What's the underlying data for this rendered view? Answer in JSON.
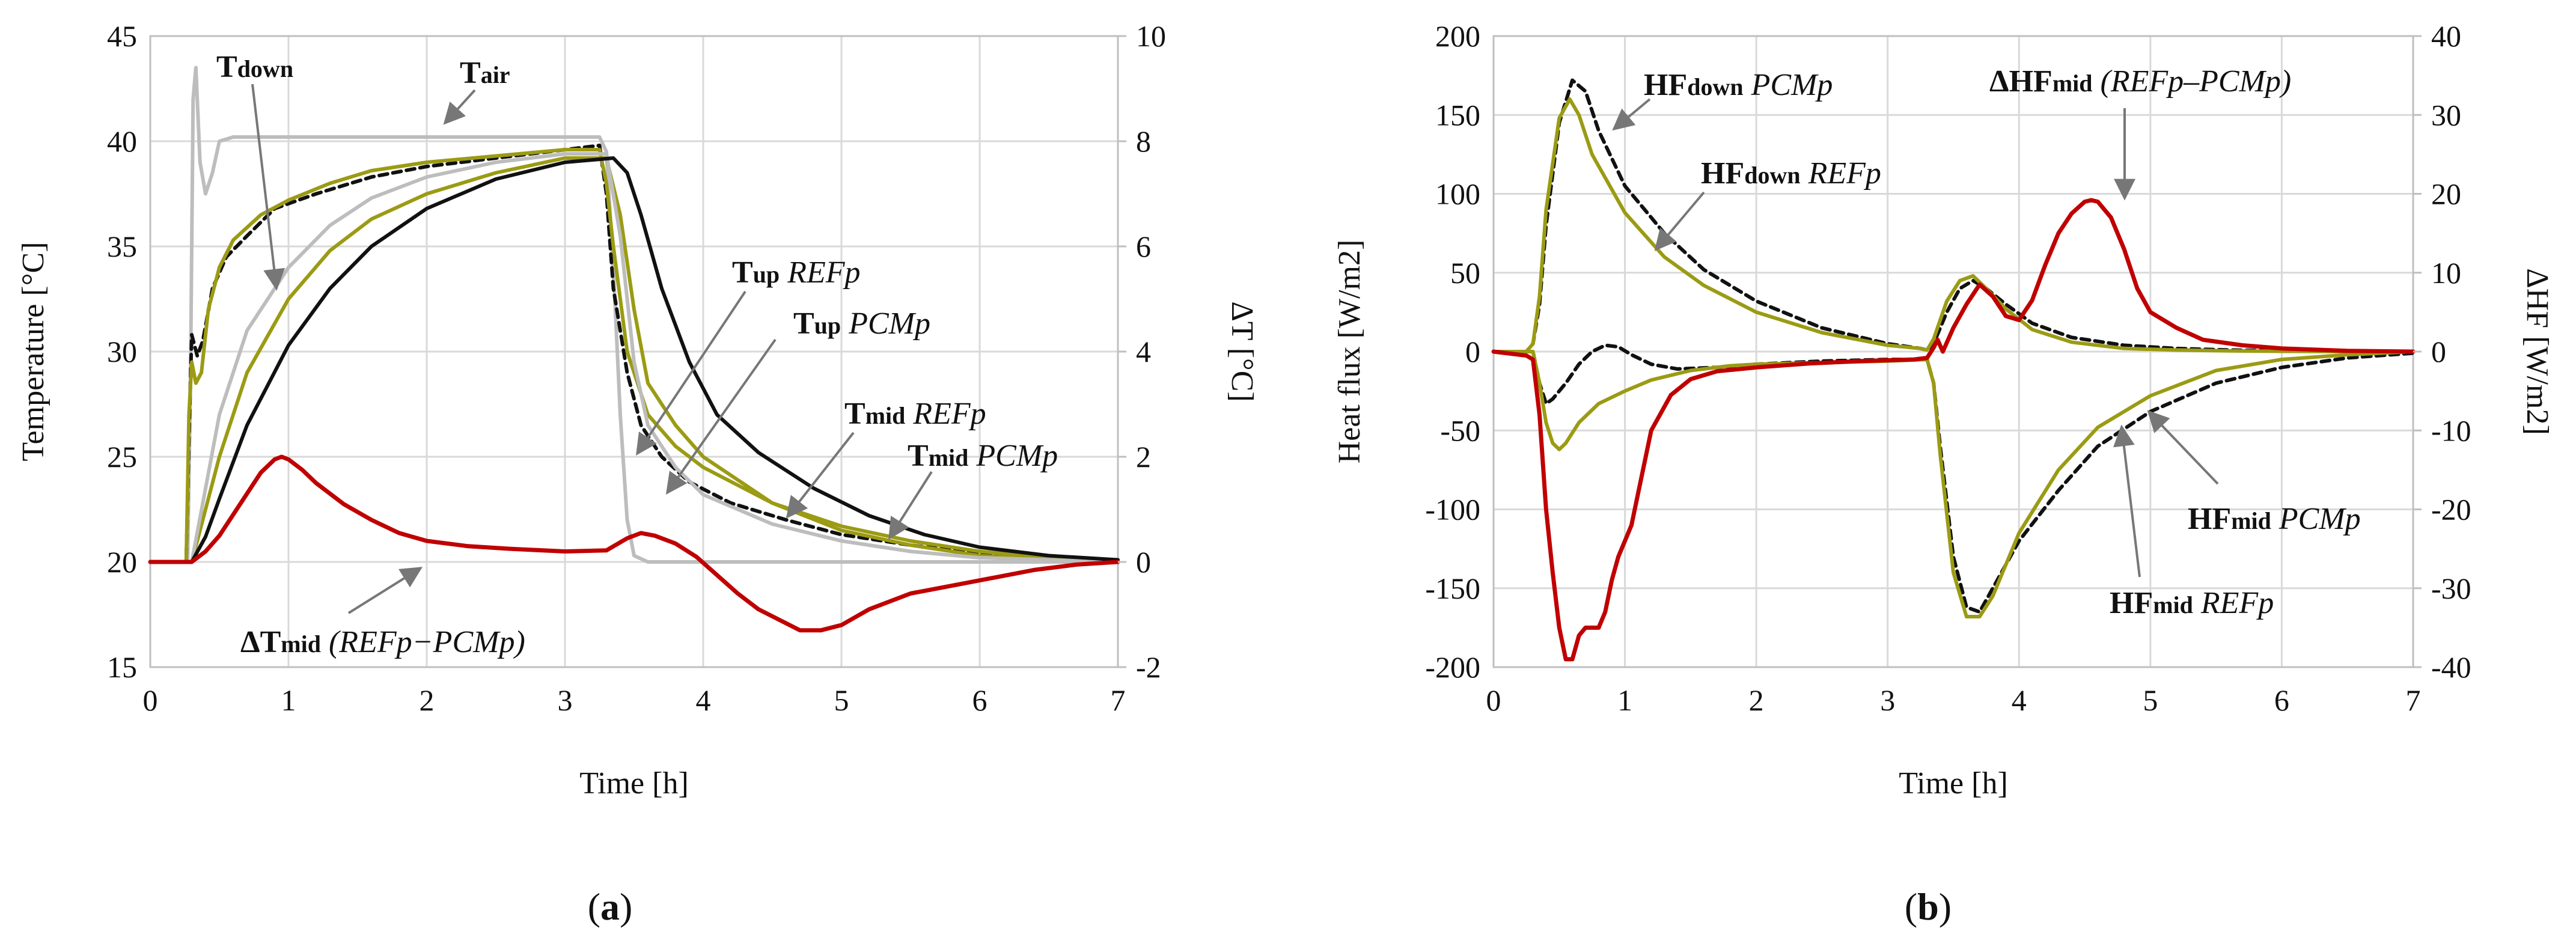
{
  "chart_data": [
    {
      "type": "line",
      "panel_label": "(a)",
      "panel_letter": "a",
      "xlabel": "Time [h]",
      "ylabel": "Temperature [°C]",
      "y2label": "ΔT [°C]",
      "xlim": [
        0,
        7
      ],
      "ylim": [
        15,
        45
      ],
      "y2lim": [
        -2,
        10
      ],
      "xticks": [
        "0",
        "1",
        "2",
        "3",
        "4",
        "5",
        "6",
        "7"
      ],
      "yticks": [
        "15",
        "20",
        "25",
        "30",
        "35",
        "40",
        "45"
      ],
      "y2ticks": [
        "-2",
        "0",
        "2",
        "4",
        "6",
        "8",
        "10"
      ],
      "grid": true,
      "series": [
        {
          "name": "Tair",
          "axis": "left",
          "color": "#bdbdbd",
          "dash": "",
          "x": [
            0,
            0.27,
            0.29,
            0.3,
            0.31,
            0.33,
            0.36,
            0.4,
            0.45,
            0.5,
            0.6,
            0.7,
            1,
            2,
            3,
            3.25,
            3.3,
            3.35,
            3.4,
            3.45,
            3.5,
            3.6,
            4,
            5,
            6,
            7
          ],
          "y": [
            20,
            20,
            28,
            35,
            42,
            43.5,
            39,
            37.5,
            38.5,
            40,
            40.2,
            40.2,
            40.2,
            40.2,
            40.2,
            40.2,
            39.5,
            34,
            27,
            22,
            20.3,
            20,
            20,
            20,
            20,
            20
          ]
        },
        {
          "name": "Tdown PCMp",
          "axis": "left",
          "color": "#111111",
          "dash": "14,9",
          "x": [
            0,
            0.26,
            0.28,
            0.3,
            0.34,
            0.38,
            0.45,
            0.55,
            0.7,
            0.9,
            1.2,
            1.6,
            2.0,
            2.5,
            3.0,
            3.25,
            3.3,
            3.35,
            3.45,
            3.55,
            3.7,
            3.9,
            4.2,
            4.6,
            5.0,
            5.5,
            6.0,
            6.5,
            7
          ],
          "y": [
            20,
            20,
            26,
            30.8,
            29.8,
            30.5,
            33,
            34.5,
            35.5,
            36.8,
            37.5,
            38.3,
            38.8,
            39.2,
            39.6,
            39.8,
            37.5,
            33,
            29,
            26.5,
            25,
            23.8,
            22.8,
            22,
            21.3,
            20.8,
            20.4,
            20.2,
            20.1
          ]
        },
        {
          "name": "Tdown REFp",
          "axis": "left",
          "color": "#9b9b14",
          "dash": "",
          "x": [
            0,
            0.26,
            0.28,
            0.3,
            0.33,
            0.37,
            0.42,
            0.5,
            0.6,
            0.8,
            1.0,
            1.3,
            1.6,
            2.0,
            2.5,
            3.0,
            3.25,
            3.3,
            3.35,
            3.45,
            3.6,
            3.8,
            4.0,
            4.5,
            5.0,
            5.5,
            6.0,
            6.5,
            7
          ],
          "y": [
            20,
            20,
            27,
            29.5,
            28.5,
            29,
            32,
            34,
            35.3,
            36.5,
            37.2,
            38,
            38.6,
            39,
            39.3,
            39.6,
            39.6,
            38,
            35,
            30,
            27,
            25.5,
            24.5,
            22.8,
            21.7,
            21,
            20.5,
            20.2,
            20.1
          ]
        },
        {
          "name": "Tup PCMp",
          "axis": "left",
          "color": "#9b9b14",
          "dash": "",
          "x": [
            0,
            0.3,
            0.4,
            0.5,
            0.7,
            1.0,
            1.3,
            1.6,
            2.0,
            2.5,
            3.0,
            3.3,
            3.4,
            3.5,
            3.6,
            3.8,
            4.0,
            4.5,
            5.0,
            5.5,
            6.0,
            6.5,
            7
          ],
          "y": [
            20,
            20,
            22.5,
            25,
            29,
            32.5,
            34.8,
            36.3,
            37.5,
            38.5,
            39.2,
            39.2,
            36.5,
            32,
            28.5,
            26.5,
            25,
            22.8,
            21.5,
            20.8,
            20.3,
            20.1,
            20
          ]
        },
        {
          "name": "Tup REFp",
          "axis": "left",
          "color": "#bdbdbd",
          "dash": "",
          "x": [
            0,
            0.3,
            0.4,
            0.5,
            0.7,
            1.0,
            1.3,
            1.6,
            2.0,
            2.5,
            3.0,
            3.3,
            3.4,
            3.5,
            3.6,
            3.8,
            4.0,
            4.5,
            5.0,
            5.5,
            6.0,
            6.5,
            7
          ],
          "y": [
            20,
            20,
            23.5,
            27,
            31,
            34,
            36,
            37.3,
            38.3,
            39,
            39.4,
            39.4,
            35.5,
            29.5,
            26.5,
            24.5,
            23.2,
            21.8,
            21,
            20.5,
            20.2,
            20.1,
            20
          ]
        },
        {
          "name": "Tmid REFp",
          "axis": "left",
          "color": "#111111",
          "dash": "",
          "x": [
            0,
            0.3,
            0.4,
            0.5,
            0.7,
            1.0,
            1.3,
            1.6,
            2.0,
            2.5,
            3.0,
            3.35,
            3.45,
            3.55,
            3.7,
            3.9,
            4.1,
            4.4,
            4.8,
            5.2,
            5.6,
            6.0,
            6.5,
            7
          ],
          "y": [
            20,
            20,
            21.2,
            23,
            26.5,
            30.3,
            33,
            35,
            36.8,
            38.2,
            39,
            39.2,
            38.5,
            36.5,
            33,
            29.5,
            27,
            25.2,
            23.5,
            22.2,
            21.3,
            20.7,
            20.3,
            20.1
          ]
        },
        {
          "name": "ΔTmid (REFp−PCMp)",
          "axis": "right",
          "color": "#c00000",
          "dash": "",
          "x": [
            0,
            0.3,
            0.4,
            0.5,
            0.6,
            0.7,
            0.8,
            0.9,
            0.95,
            1.0,
            1.1,
            1.2,
            1.4,
            1.6,
            1.8,
            2.0,
            2.3,
            2.6,
            3.0,
            3.3,
            3.45,
            3.55,
            3.65,
            3.8,
            3.95,
            4.1,
            4.25,
            4.4,
            4.55,
            4.7,
            4.85,
            5.0,
            5.2,
            5.5,
            5.8,
            6.1,
            6.4,
            6.7,
            7
          ],
          "y": [
            0,
            0,
            0.2,
            0.5,
            0.9,
            1.3,
            1.7,
            1.95,
            2.0,
            1.95,
            1.75,
            1.5,
            1.1,
            0.8,
            0.55,
            0.4,
            0.3,
            0.25,
            0.2,
            0.22,
            0.45,
            0.55,
            0.5,
            0.35,
            0.1,
            -0.25,
            -0.6,
            -0.9,
            -1.1,
            -1.3,
            -1.3,
            -1.2,
            -0.9,
            -0.6,
            -0.45,
            -0.3,
            -0.15,
            -0.05,
            0
          ]
        }
      ],
      "annotations": [
        {
          "main": "T",
          "sub": "down",
          "rest": ""
        },
        {
          "main": "T",
          "sub": "air",
          "rest": ""
        },
        {
          "main": "T",
          "sub": "up",
          "rest": " REFp"
        },
        {
          "main": "T",
          "sub": "up",
          "rest": " PCMp"
        },
        {
          "main": "T",
          "sub": "mid",
          "rest": " REFp"
        },
        {
          "main": "T",
          "sub": "mid",
          "rest": " PCMp"
        },
        {
          "main": "ΔT",
          "sub": "mid",
          "rest": " (REFp−PCMp)"
        }
      ]
    },
    {
      "type": "line",
      "panel_label": "(b)",
      "panel_letter": "b",
      "xlabel": "Time [h]",
      "ylabel": "Heat flux [W/m2]",
      "y2label": "ΔHF [W/m2]",
      "xlim": [
        0,
        7
      ],
      "ylim": [
        -200,
        200
      ],
      "y2lim": [
        -40,
        40
      ],
      "xticks": [
        "0",
        "1",
        "2",
        "3",
        "4",
        "5",
        "6",
        "7"
      ],
      "yticks": [
        "-200",
        "-150",
        "-100",
        "-50",
        "0",
        "50",
        "100",
        "150",
        "200"
      ],
      "y2ticks": [
        "-40",
        "-30",
        "-20",
        "-10",
        "0",
        "10",
        "20",
        "30",
        "40"
      ],
      "grid": true,
      "series": [
        {
          "name": "HFdown PCMp",
          "axis": "left",
          "color": "#111111",
          "dash": "14,9",
          "x": [
            0,
            0.25,
            0.3,
            0.35,
            0.4,
            0.5,
            0.6,
            0.7,
            0.8,
            1.0,
            1.3,
            1.6,
            2.0,
            2.5,
            3.0,
            3.25,
            3.3,
            3.35,
            3.45,
            3.55,
            3.65,
            3.75,
            3.9,
            4.1,
            4.4,
            4.8,
            5.2,
            5.6,
            6.0,
            6.5,
            7
          ],
          "y": [
            0,
            0,
            5,
            30,
            80,
            145,
            172,
            165,
            140,
            105,
            75,
            52,
            32,
            15,
            5,
            2,
            1,
            5,
            25,
            40,
            45,
            40,
            30,
            18,
            9,
            4,
            2,
            1,
            0.5,
            0.2,
            0
          ]
        },
        {
          "name": "HFdown REFp",
          "axis": "left",
          "color": "#9b9b14",
          "dash": "",
          "x": [
            0,
            0.25,
            0.3,
            0.35,
            0.4,
            0.5,
            0.58,
            0.65,
            0.75,
            1.0,
            1.3,
            1.6,
            2.0,
            2.5,
            3.0,
            3.25,
            3.3,
            3.35,
            3.45,
            3.55,
            3.65,
            3.75,
            3.9,
            4.1,
            4.4,
            4.8,
            5.2,
            5.6,
            6.0,
            6.5,
            7
          ],
          "y": [
            0,
            0,
            5,
            35,
            90,
            148,
            160,
            150,
            125,
            88,
            60,
            42,
            25,
            12,
            4,
            2,
            1,
            8,
            32,
            45,
            48,
            40,
            27,
            14,
            6,
            2,
            1,
            0.5,
            0.2,
            0,
            0
          ]
        },
        {
          "name": "HFmid PCMp",
          "axis": "left",
          "color": "#111111",
          "dash": "14,9",
          "x": [
            0,
            0.3,
            0.35,
            0.4,
            0.45,
            0.55,
            0.65,
            0.75,
            0.85,
            0.95,
            1.05,
            1.2,
            1.4,
            1.7,
            2.0,
            2.5,
            3.0,
            3.3,
            3.35,
            3.4,
            3.5,
            3.6,
            3.7,
            3.8,
            4.0,
            4.3,
            4.6,
            5.0,
            5.5,
            6.0,
            6.5,
            7
          ],
          "y": [
            0,
            0,
            -20,
            -33,
            -30,
            -20,
            -8,
            0,
            4,
            3,
            -2,
            -8,
            -11,
            -10,
            -8,
            -6,
            -5,
            -5,
            -20,
            -60,
            -130,
            -162,
            -165,
            -150,
            -120,
            -88,
            -60,
            -38,
            -20,
            -10,
            -4,
            -1
          ]
        },
        {
          "name": "HFmid REFp",
          "axis": "left",
          "color": "#9b9b14",
          "dash": "",
          "x": [
            0,
            0.3,
            0.35,
            0.4,
            0.45,
            0.5,
            0.55,
            0.65,
            0.8,
            1.0,
            1.2,
            1.5,
            1.8,
            2.0,
            2.5,
            3.0,
            3.3,
            3.35,
            3.4,
            3.5,
            3.6,
            3.7,
            3.8,
            4.0,
            4.3,
            4.6,
            5.0,
            5.5,
            6.0,
            6.5,
            7
          ],
          "y": [
            0,
            0,
            -20,
            -45,
            -58,
            -62,
            -58,
            -45,
            -33,
            -25,
            -18,
            -12,
            -9,
            -8,
            -7,
            -6,
            -5,
            -20,
            -65,
            -140,
            -168,
            -168,
            -155,
            -115,
            -75,
            -48,
            -28,
            -12,
            -5,
            -2,
            0
          ]
        },
        {
          "name": "ΔHFmid (REFp−PCMp)",
          "axis": "right",
          "color": "#c00000",
          "dash": "",
          "x": [
            0,
            0.25,
            0.3,
            0.35,
            0.4,
            0.45,
            0.5,
            0.55,
            0.6,
            0.65,
            0.7,
            0.8,
            0.85,
            0.9,
            0.95,
            1.0,
            1.05,
            1.1,
            1.2,
            1.35,
            1.5,
            1.7,
            2.0,
            2.4,
            2.8,
            3.2,
            3.3,
            3.35,
            3.38,
            3.42,
            3.5,
            3.6,
            3.7,
            3.8,
            3.9,
            4.0,
            4.1,
            4.2,
            4.3,
            4.4,
            4.5,
            4.55,
            4.6,
            4.7,
            4.8,
            4.9,
            5.0,
            5.2,
            5.4,
            5.7,
            6.0,
            6.5,
            7
          ],
          "y": [
            0,
            -0.5,
            -1,
            -8,
            -20,
            -28,
            -35,
            -39,
            -39,
            -36,
            -35,
            -35,
            -33,
            -29,
            -26,
            -24,
            -22,
            -18,
            -10,
            -5.5,
            -3.5,
            -2.5,
            -2,
            -1.5,
            -1.2,
            -1,
            -0.8,
            0.5,
            1.5,
            0,
            3,
            6,
            8.5,
            7,
            4.5,
            4,
            6.5,
            11,
            15,
            17.5,
            19,
            19.2,
            19,
            17,
            13,
            8,
            5,
            3,
            1.5,
            0.8,
            0.4,
            0.1,
            0
          ]
        }
      ],
      "annotations": [
        {
          "main": "HF",
          "sub": "down",
          "rest": " PCMp"
        },
        {
          "main": "HF",
          "sub": "down",
          "rest": " REFp"
        },
        {
          "main": "ΔHF",
          "sub": "mid",
          "rest": " (REFp–PCMp)"
        },
        {
          "main": "HF",
          "sub": "mid",
          "rest": " PCMp"
        },
        {
          "main": "HF",
          "sub": "mid",
          "rest": " REFp"
        }
      ]
    }
  ]
}
